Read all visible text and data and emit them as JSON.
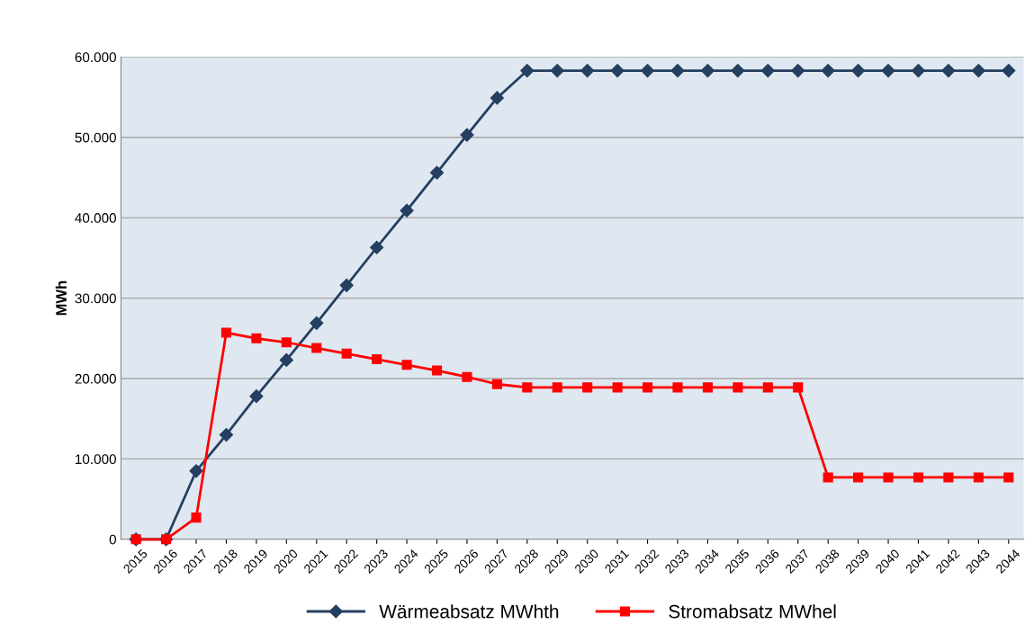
{
  "chart_data": {
    "type": "line",
    "ylabel": "MWh",
    "categories": [
      "2015",
      "2016",
      "2017",
      "2018",
      "2019",
      "2020",
      "2021",
      "2022",
      "2023",
      "2024",
      "2025",
      "2026",
      "2027",
      "2028",
      "2029",
      "2030",
      "2031",
      "2032",
      "2033",
      "2034",
      "2035",
      "2036",
      "2037",
      "2038",
      "2039",
      "2040",
      "2041",
      "2042",
      "2043",
      "2044"
    ],
    "series": [
      {
        "name": "Wärmeabsatz MWhth",
        "color": "#243f60",
        "marker": "diamond",
        "values": [
          0,
          0,
          8500,
          13000,
          17800,
          22300,
          26900,
          31600,
          36300,
          40900,
          45600,
          50300,
          54900,
          58300,
          58300,
          58300,
          58300,
          58300,
          58300,
          58300,
          58300,
          58300,
          58300,
          58300,
          58300,
          58300,
          58300,
          58300,
          58300,
          58300
        ]
      },
      {
        "name": "Stromabsatz MWhel",
        "color": "#ff0000",
        "marker": "square",
        "values": [
          0,
          0,
          2700,
          25700,
          25000,
          24500,
          23800,
          23100,
          22400,
          21700,
          21000,
          20200,
          19300,
          18900,
          18900,
          18900,
          18900,
          18900,
          18900,
          18900,
          18900,
          18900,
          18900,
          7700,
          7700,
          7700,
          7700,
          7700,
          7700,
          7700
        ]
      }
    ],
    "ylim": [
      0,
      60000
    ],
    "yticks": [
      {
        "value": 0,
        "label": "0"
      },
      {
        "value": 10000,
        "label": "10.000"
      },
      {
        "value": 20000,
        "label": "20.000"
      },
      {
        "value": 30000,
        "label": "30.000"
      },
      {
        "value": 40000,
        "label": "40.000"
      },
      {
        "value": 50000,
        "label": "50.000"
      },
      {
        "value": 60000,
        "label": "60.000"
      }
    ],
    "grid": "y",
    "legend": "bottom",
    "line_style": "solid"
  }
}
